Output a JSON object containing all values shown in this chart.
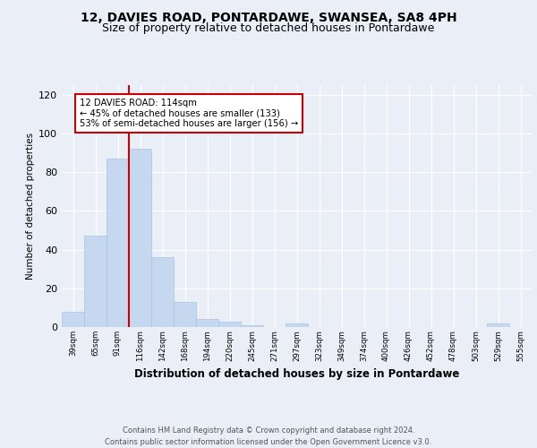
{
  "title1": "12, DAVIES ROAD, PONTARDAWE, SWANSEA, SA8 4PH",
  "title2": "Size of property relative to detached houses in Pontardawe",
  "xlabel": "Distribution of detached houses by size in Pontardawe",
  "ylabel": "Number of detached properties",
  "footnote1": "Contains HM Land Registry data © Crown copyright and database right 2024.",
  "footnote2": "Contains public sector information licensed under the Open Government Licence v3.0.",
  "bar_labels": [
    "39sqm",
    "65sqm",
    "91sqm",
    "116sqm",
    "142sqm",
    "168sqm",
    "194sqm",
    "220sqm",
    "245sqm",
    "271sqm",
    "297sqm",
    "323sqm",
    "349sqm",
    "374sqm",
    "400sqm",
    "426sqm",
    "452sqm",
    "478sqm",
    "503sqm",
    "529sqm",
    "555sqm"
  ],
  "bar_values": [
    8,
    47,
    87,
    92,
    36,
    13,
    4,
    3,
    1,
    0,
    2,
    0,
    0,
    0,
    0,
    0,
    0,
    0,
    0,
    2,
    0
  ],
  "bar_color": "#c5d8f0",
  "bar_edge_color": "#a8c4e0",
  "vline_color": "#cc0000",
  "annotation_text": "12 DAVIES ROAD: 114sqm\n← 45% of detached houses are smaller (133)\n53% of semi-detached houses are larger (156) →",
  "annotation_box_color": "white",
  "annotation_box_edge": "#cc0000",
  "ylim": [
    0,
    125
  ],
  "yticks": [
    0,
    20,
    40,
    60,
    80,
    100,
    120
  ],
  "background_color": "#eaeff7",
  "axes_facecolor": "#eaeff7",
  "grid_color": "white",
  "title1_fontsize": 10,
  "title2_fontsize": 9
}
